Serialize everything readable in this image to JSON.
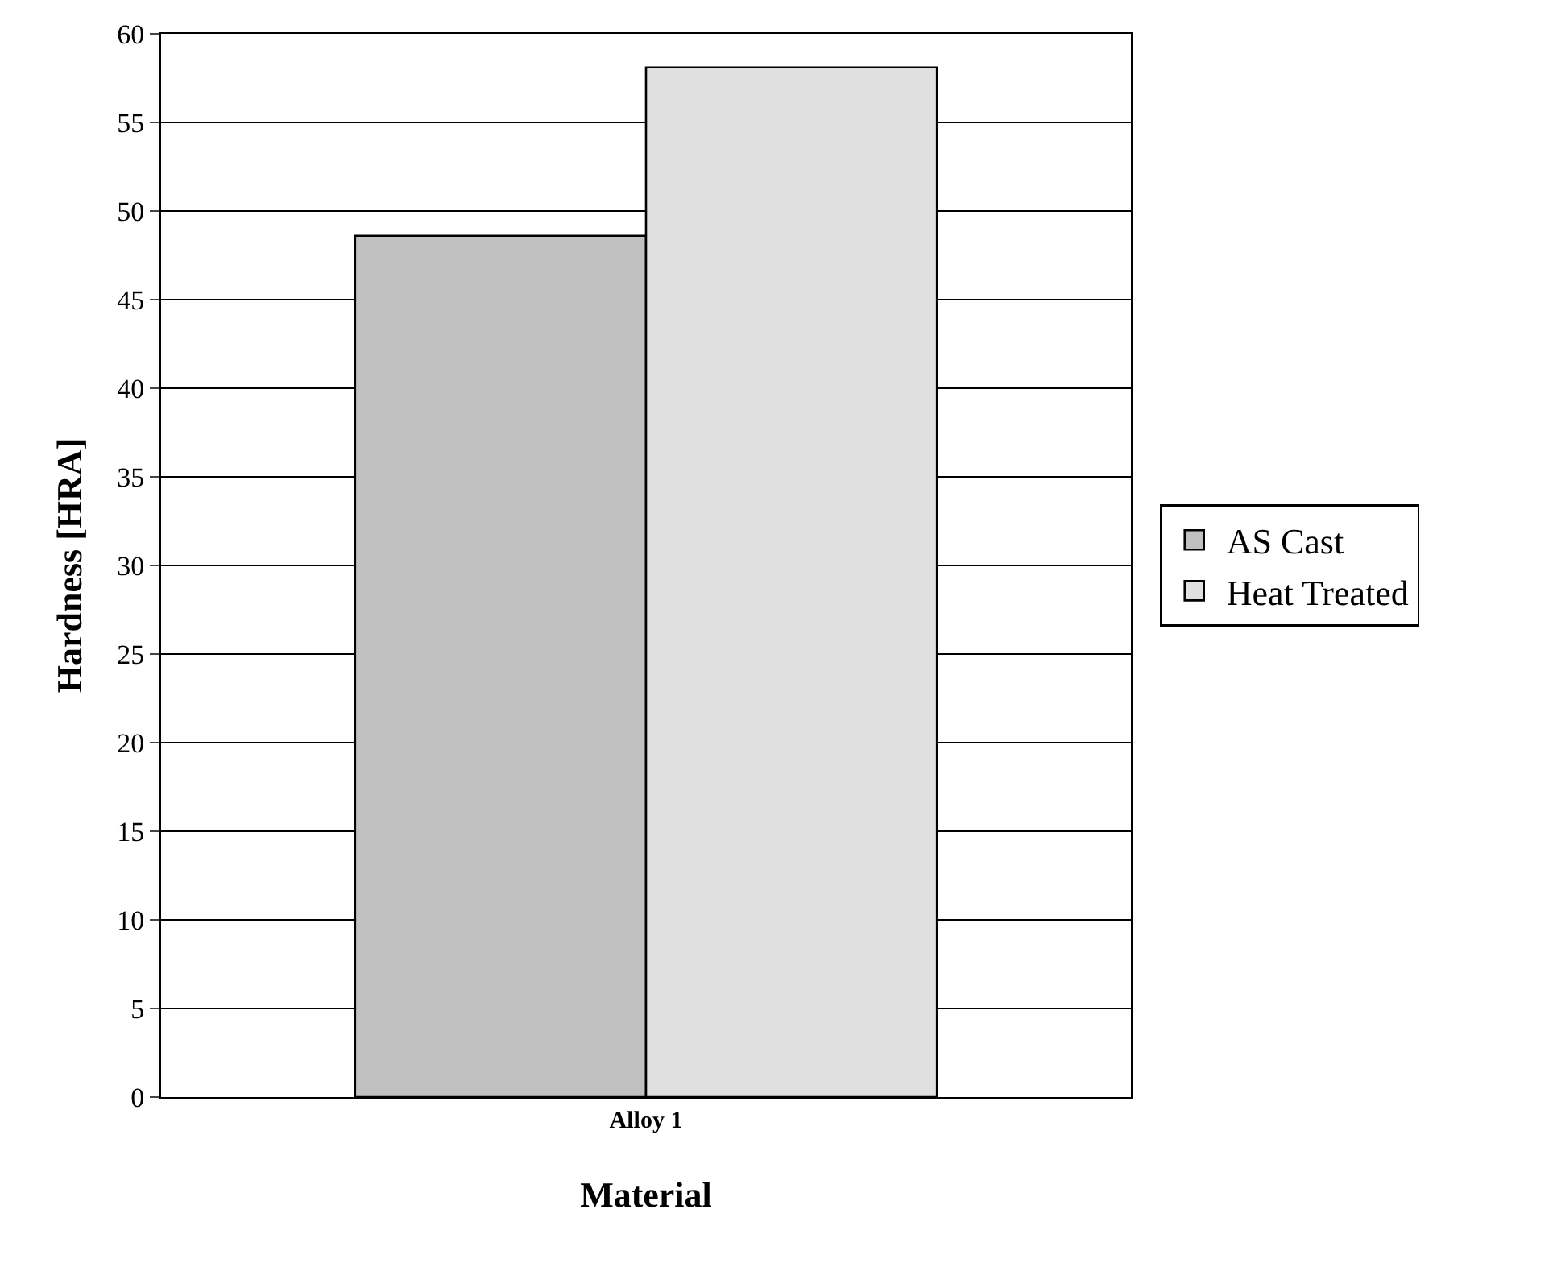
{
  "chart_data": {
    "type": "bar",
    "xlabel": "Material",
    "ylabel": "Hardness [HRA]",
    "categories": [
      "Alloy 1"
    ],
    "series": [
      {
        "name": "AS Cast",
        "color": "#c0c0c0",
        "values": [
          48.6
        ]
      },
      {
        "name": "Heat Treated",
        "color": "#e0e0e0",
        "values": [
          58.1
        ]
      }
    ],
    "ylim": [
      0,
      60
    ],
    "yticks": [
      0,
      5,
      10,
      15,
      20,
      25,
      30,
      35,
      40,
      45,
      50,
      55,
      60
    ],
    "grid": "y",
    "legend": "right"
  }
}
